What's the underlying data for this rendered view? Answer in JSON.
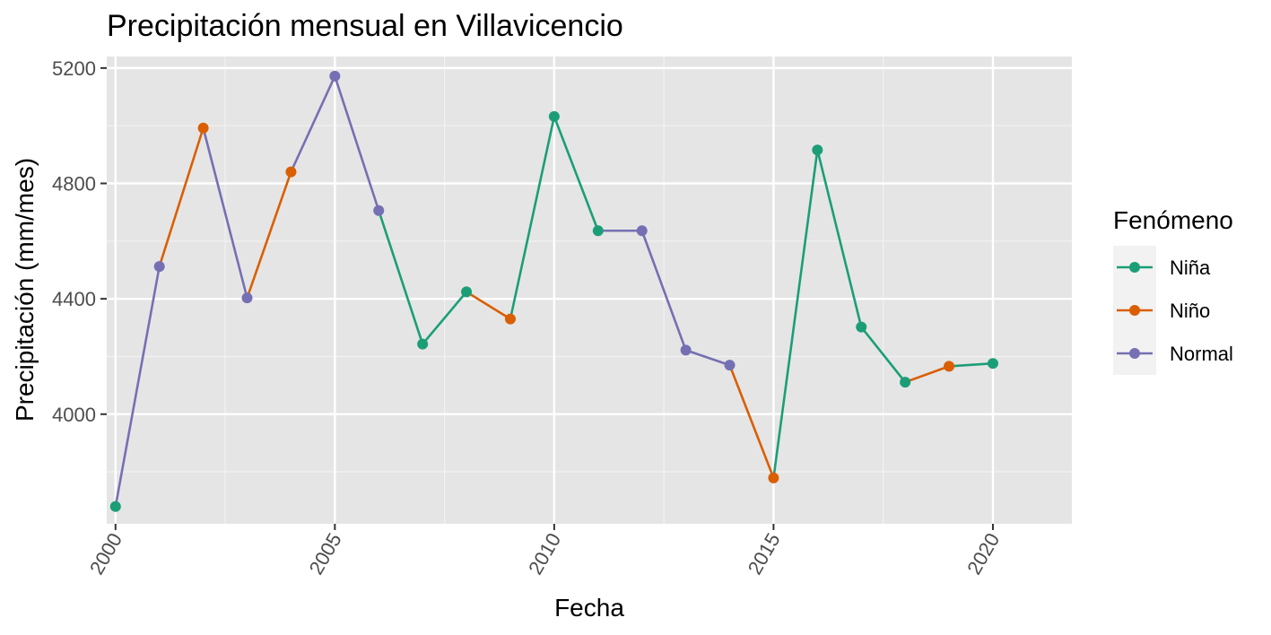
{
  "chart_data": {
    "type": "line",
    "title": "Precipitación mensual en Villavicencio",
    "xlabel": "Fecha",
    "ylabel": "Precipitación (mm/mes)",
    "xlim": [
      1999.8,
      2021.8
    ],
    "ylim": [
      3620,
      5240
    ],
    "x_ticks": [
      2000,
      2005,
      2010,
      2015,
      2020
    ],
    "x_tick_labels": [
      "2000",
      "2005",
      "2010",
      "2015",
      "2020"
    ],
    "y_ticks": [
      4000,
      4400,
      4800,
      5200
    ],
    "y_tick_labels": [
      "4000",
      "4400",
      "4800",
      "5200"
    ],
    "grid": true,
    "legend": {
      "title": "Fenómeno",
      "position": "right",
      "entries": [
        {
          "name": "Niña",
          "color": "#1b9e77"
        },
        {
          "name": "Niño",
          "color": "#d95f02"
        },
        {
          "name": "Normal",
          "color": "#7570b3"
        }
      ]
    },
    "points": [
      {
        "x": 2000,
        "y": 3680,
        "phase": "Niña"
      },
      {
        "x": 2001,
        "y": 4512,
        "phase": "Normal"
      },
      {
        "x": 2002,
        "y": 4992,
        "phase": "Niño"
      },
      {
        "x": 2003,
        "y": 4403,
        "phase": "Normal"
      },
      {
        "x": 2004,
        "y": 4840,
        "phase": "Niño"
      },
      {
        "x": 2005,
        "y": 5172,
        "phase": "Normal"
      },
      {
        "x": 2006,
        "y": 4706,
        "phase": "Normal"
      },
      {
        "x": 2007,
        "y": 4243,
        "phase": "Niña"
      },
      {
        "x": 2008,
        "y": 4424,
        "phase": "Niña"
      },
      {
        "x": 2009,
        "y": 4330,
        "phase": "Niño"
      },
      {
        "x": 2010,
        "y": 5032,
        "phase": "Niña"
      },
      {
        "x": 2011,
        "y": 4636,
        "phase": "Niña"
      },
      {
        "x": 2012,
        "y": 4636,
        "phase": "Normal"
      },
      {
        "x": 2013,
        "y": 4222,
        "phase": "Normal"
      },
      {
        "x": 2014,
        "y": 4170,
        "phase": "Normal"
      },
      {
        "x": 2015,
        "y": 3779,
        "phase": "Niño"
      },
      {
        "x": 2016,
        "y": 4916,
        "phase": "Niña"
      },
      {
        "x": 2017,
        "y": 4302,
        "phase": "Niña"
      },
      {
        "x": 2018,
        "y": 4111,
        "phase": "Niña"
      },
      {
        "x": 2019,
        "y": 4166,
        "phase": "Niño"
      },
      {
        "x": 2020,
        "y": 4176,
        "phase": "Niña"
      }
    ]
  },
  "colors": {
    "panel_background": "#e5e5e5",
    "grid_major": "#ffffff",
    "grid_minor": "#f2f2f2",
    "legend_key_background": "#f2f2f2"
  }
}
